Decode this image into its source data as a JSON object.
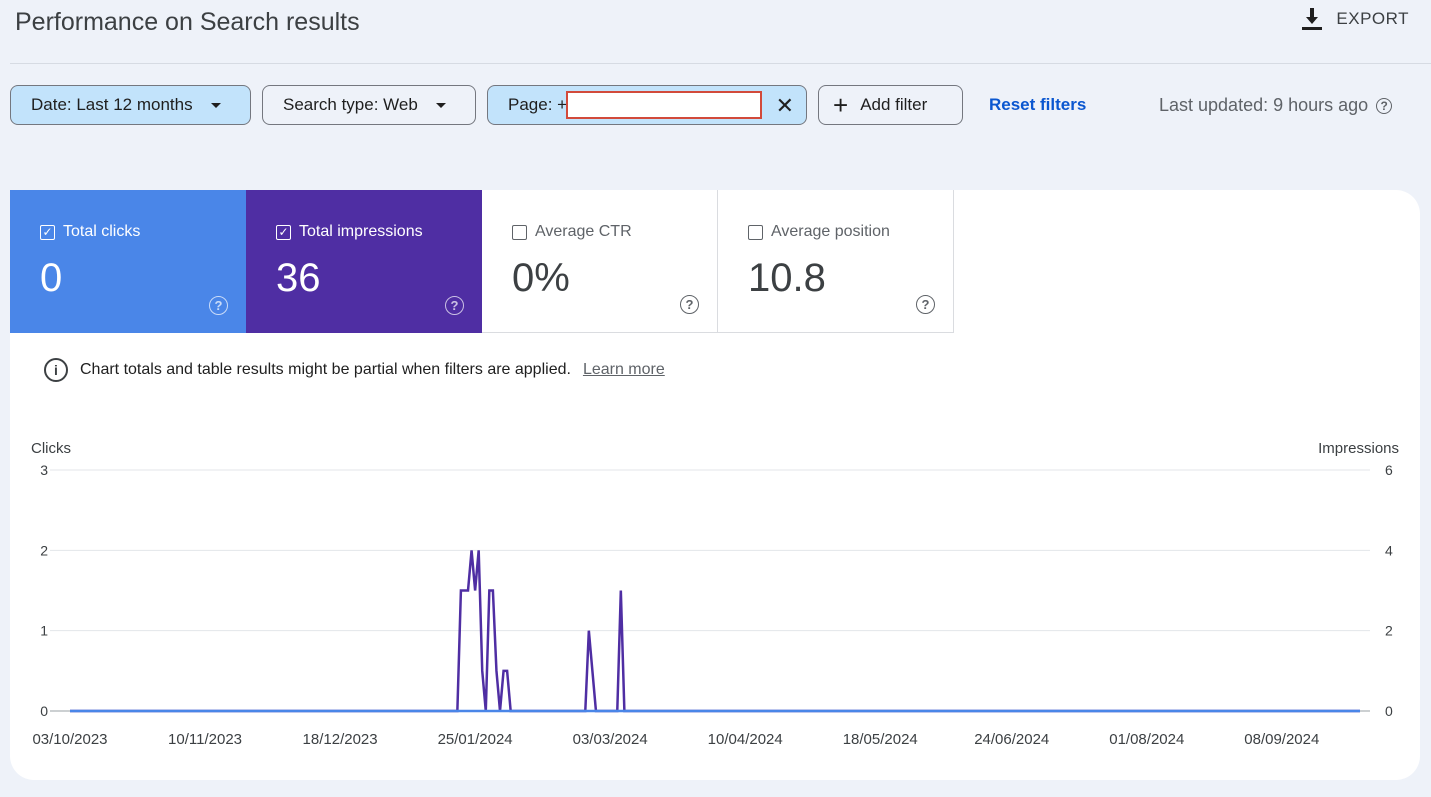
{
  "header": {
    "title": "Performance on Search results",
    "export_label": "EXPORT"
  },
  "filters": {
    "date_label": "Date: Last 12 months",
    "search_type_label": "Search type: Web",
    "page_label": "Page: +",
    "add_filter_label": "Add filter",
    "reset_label": "Reset filters",
    "last_updated": "Last updated: 9 hours ago"
  },
  "metrics": [
    {
      "label": "Total clicks",
      "value": "0",
      "checked": true,
      "color": "#4a86e8"
    },
    {
      "label": "Total impressions",
      "value": "36",
      "checked": true,
      "color": "#4f2ea3"
    },
    {
      "label": "Average CTR",
      "value": "0%",
      "checked": false,
      "color": "#ffffff"
    },
    {
      "label": "Average position",
      "value": "10.8",
      "checked": false,
      "color": "#ffffff"
    }
  ],
  "notice": {
    "text": "Chart totals and table results might be partial when filters are applied.",
    "link": "Learn more"
  },
  "chart_data": {
    "type": "line",
    "ylabel_left": "Clicks",
    "ylabel_right": "Impressions",
    "yticks_left": [
      "0",
      "1",
      "2",
      "3"
    ],
    "yticks_right": [
      "0",
      "2",
      "4",
      "6"
    ],
    "ylim_left": [
      0,
      3
    ],
    "ylim_right": [
      0,
      6
    ],
    "x_tick_labels": [
      "03/10/2023",
      "10/11/2023",
      "18/12/2023",
      "25/01/2024",
      "03/03/2024",
      "10/04/2024",
      "18/05/2024",
      "24/06/2024",
      "01/08/2024",
      "08/09/2024"
    ],
    "grid": true,
    "series": [
      {
        "name": "Clicks",
        "axis": "left",
        "color": "#4a86e8",
        "points": [
          [
            "2023-10-03",
            0
          ],
          [
            "2024-09-30",
            0
          ]
        ]
      },
      {
        "name": "Impressions",
        "axis": "right",
        "color": "#4f2ea3",
        "points": [
          [
            "2023-10-03",
            0
          ],
          [
            "2024-01-20",
            0
          ],
          [
            "2024-01-21",
            3
          ],
          [
            "2024-01-22",
            3
          ],
          [
            "2024-01-23",
            3
          ],
          [
            "2024-01-24",
            4
          ],
          [
            "2024-01-25",
            3
          ],
          [
            "2024-01-26",
            4
          ],
          [
            "2024-01-27",
            1
          ],
          [
            "2024-01-28",
            0
          ],
          [
            "2024-01-29",
            3
          ],
          [
            "2024-01-30",
            3
          ],
          [
            "2024-01-31",
            1
          ],
          [
            "2024-02-01",
            0
          ],
          [
            "2024-02-02",
            1
          ],
          [
            "2024-02-03",
            1
          ],
          [
            "2024-02-04",
            0
          ],
          [
            "2024-02-25",
            0
          ],
          [
            "2024-02-26",
            2
          ],
          [
            "2024-02-27",
            1
          ],
          [
            "2024-02-28",
            0
          ],
          [
            "2024-03-05",
            0
          ],
          [
            "2024-03-06",
            3
          ],
          [
            "2024-03-07",
            0
          ],
          [
            "2024-09-30",
            0
          ]
        ]
      }
    ]
  }
}
